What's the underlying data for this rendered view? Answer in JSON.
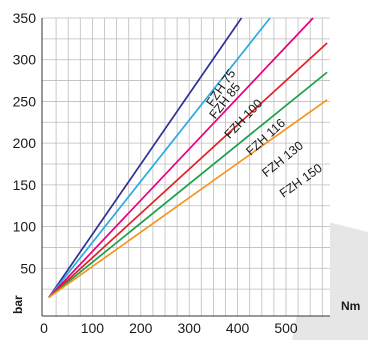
{
  "chart_data": {
    "type": "line",
    "xlabel": "Nm",
    "ylabel": "bar",
    "xlim": [
      0,
      600
    ],
    "ylim": [
      0,
      350
    ],
    "x_ticks": [
      0,
      100,
      200,
      300,
      400,
      500
    ],
    "y_ticks": [
      50,
      100,
      150,
      200,
      250,
      300,
      350
    ],
    "grid": true,
    "series": [
      {
        "name": "FZH 75",
        "color": "#2e3192",
        "x": [
          10,
          408
        ],
        "y": [
          15,
          350
        ]
      },
      {
        "name": "FZH 85",
        "color": "#29abe2",
        "x": [
          10,
          467
        ],
        "y": [
          15,
          350
        ]
      },
      {
        "name": "FZH 100",
        "color": "#e6007e",
        "x": [
          10,
          556
        ],
        "y": [
          15,
          350
        ]
      },
      {
        "name": "FZH 116",
        "color": "#e31e24",
        "x": [
          10,
          585
        ],
        "y": [
          15,
          320
        ]
      },
      {
        "name": "FZH 130",
        "color": "#1aa04b",
        "x": [
          10,
          585
        ],
        "y": [
          15,
          285
        ]
      },
      {
        "name": "FZH 150",
        "color": "#f7941d",
        "x": [
          10,
          585
        ],
        "y": [
          15,
          252
        ]
      }
    ]
  }
}
